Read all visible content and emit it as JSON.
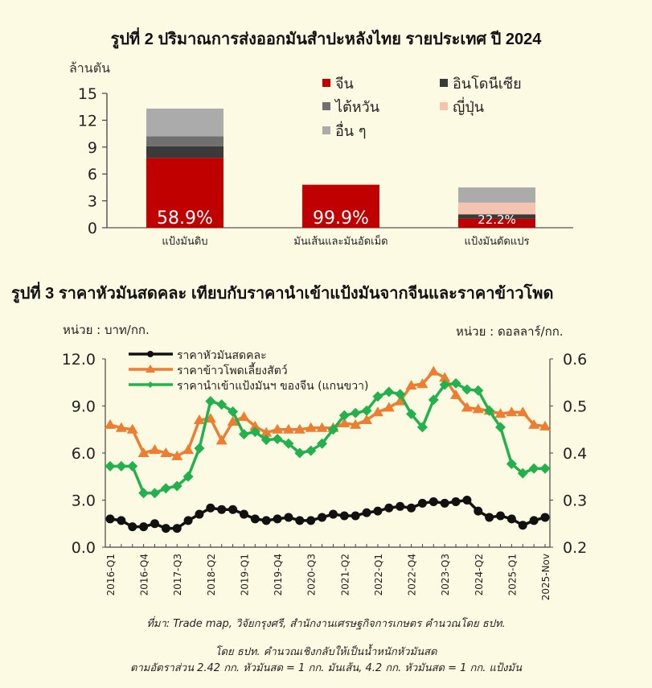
{
  "figure2": {
    "title": "รูปที่ 2 ปริมาณการส่งออกมันสำปะหลังไทย รายประเทศ ปี 2024",
    "unit": "ล้านตัน"
  },
  "figure3": {
    "title": "รูปที่ 3 ราคาหัวมันสดคละ เทียบกับราคานำเข้าแป้งมันจากจีนและราคาข้าวโพด",
    "unit_left": "หน่วย : บาท/กก.",
    "unit_right": "หน่วย : ดอลลาร์/กก."
  },
  "notes": {
    "source": "ที่มา: Trade map, วิจัยกรุงศรี, สำนักงานเศรษฐกิจการเกษตร คำนวณโดย ธปท.",
    "line1": "โดย ธปท. คำนวณเชิงกลับให้เป็นน้ำหนักหัวมันสด",
    "line2": "ตามอัตราส่วน 2.42 กก. หัวมันสด = 1 กก. มันเส้น, 4.2 กก. หัวมันสด = 1 กก. แป้งมัน"
  },
  "chart_data": [
    {
      "type": "bar",
      "stacked": true,
      "title": "รูปที่ 2 ปริมาณการส่งออกมันสำปะหลังไทย รายประเทศ ปี 2024",
      "ylabel": "ล้านตัน",
      "ylim": [
        0,
        15
      ],
      "yticks": [
        0,
        3,
        6,
        9,
        12,
        15
      ],
      "categories": [
        "แป้งมันดิบ",
        "มันเส้นและมันอัดเม็ด",
        "แป้งมันดัดแปร"
      ],
      "series": [
        {
          "name": "จีน",
          "color": "#c00000",
          "values": [
            7.8,
            4.8,
            1.0
          ]
        },
        {
          "name": "อินโดนีเซีย",
          "color": "#3a3a3a",
          "values": [
            1.3,
            0.0,
            0.5
          ]
        },
        {
          "name": "ไต้หวัน",
          "color": "#707070",
          "values": [
            1.1,
            0.0,
            0.0
          ]
        },
        {
          "name": "ญี่ปุ่น",
          "color": "#f4c4b0",
          "values": [
            0.0,
            0.0,
            1.3
          ]
        },
        {
          "name": "อื่น ๆ",
          "color": "#ababab",
          "values": [
            3.1,
            0.0,
            1.7
          ]
        }
      ],
      "data_labels": [
        "58.9%",
        "99.9%",
        "22.2%"
      ],
      "legend_position": "top-right"
    },
    {
      "type": "line",
      "title": "รูปที่ 3 ราคาหัวมันสดคละ เทียบกับราคานำเข้าแป้งมันจากจีนและราคาข้าวโพด",
      "ylabel": "หน่วย : บาท/กก.",
      "ylabel_right": "หน่วย : ดอลลาร์/กก.",
      "ylim": [
        0,
        12
      ],
      "yticks": [
        0.0,
        3.0,
        6.0,
        9.0,
        12.0
      ],
      "ylim_right": [
        0.2,
        0.6
      ],
      "yticks_right": [
        0.2,
        0.3,
        0.4,
        0.5,
        0.6
      ],
      "xtick_labels": [
        "2016-Q1",
        "2016-Q4",
        "2017-Q3",
        "2018-Q2",
        "2019-Q1",
        "2019-Q4",
        "2020-Q3",
        "2021-Q2",
        "2022-Q1",
        "2022-Q4",
        "2023-Q3",
        "2024-Q2",
        "2025-Q1",
        "2025-Nov"
      ],
      "xtick_index": [
        0,
        3,
        6,
        9,
        12,
        15,
        18,
        21,
        24,
        27,
        30,
        33,
        36,
        39
      ],
      "n_points": 40,
      "legend_position": "top-left",
      "series": [
        {
          "name": "ราคาหัวมันสดคละ",
          "axis": "left",
          "color": "#111111",
          "marker": "circle",
          "values": [
            1.8,
            1.7,
            1.3,
            1.3,
            1.5,
            1.2,
            1.2,
            1.7,
            2.1,
            2.5,
            2.4,
            2.4,
            2.1,
            1.8,
            1.7,
            1.8,
            1.9,
            1.7,
            1.7,
            1.9,
            2.1,
            2.0,
            2.0,
            2.2,
            2.3,
            2.5,
            2.6,
            2.5,
            2.8,
            2.9,
            2.8,
            2.9,
            3.0,
            2.3,
            1.9,
            2.0,
            1.8,
            1.4,
            1.7,
            1.9
          ]
        },
        {
          "name": "ราคาข้าวโพดเลี้ยงสัตว์",
          "axis": "left",
          "color": "#ed7d31",
          "marker": "triangle",
          "values": [
            7.8,
            7.6,
            7.5,
            6.0,
            6.2,
            6.0,
            5.8,
            6.2,
            8.1,
            8.2,
            6.8,
            8.0,
            8.3,
            7.7,
            7.3,
            7.5,
            7.5,
            7.5,
            7.6,
            7.6,
            7.6,
            7.9,
            7.8,
            8.1,
            8.6,
            8.9,
            9.3,
            10.3,
            10.4,
            11.2,
            10.8,
            9.7,
            8.9,
            8.8,
            8.7,
            8.5,
            8.6,
            8.6,
            7.8,
            7.7
          ]
        },
        {
          "name": "ราคานำเข้าแป้งมันฯ ของจีน (แกนขวา)",
          "axis": "right",
          "color": "#22b14c",
          "marker": "diamond",
          "values": [
            0.372,
            0.372,
            0.372,
            0.315,
            0.315,
            0.325,
            0.33,
            0.35,
            0.41,
            0.51,
            0.503,
            0.488,
            0.44,
            0.445,
            0.428,
            0.43,
            0.42,
            0.4,
            0.405,
            0.42,
            0.45,
            0.48,
            0.485,
            0.49,
            0.52,
            0.53,
            0.525,
            0.483,
            0.455,
            0.513,
            0.545,
            0.548,
            0.535,
            0.533,
            0.49,
            0.455,
            0.377,
            0.357,
            0.367,
            0.367
          ]
        }
      ]
    }
  ]
}
